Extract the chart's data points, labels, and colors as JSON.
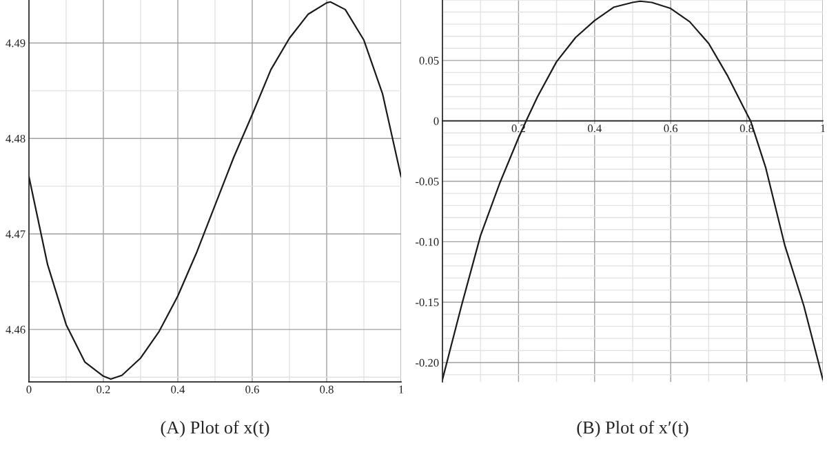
{
  "chart_data": [
    {
      "type": "line",
      "title": "(A) Plot of x(t)",
      "series": [
        {
          "color": "#1a1a1a",
          "x": [
            0,
            0.05,
            0.1,
            0.15,
            0.2,
            0.22,
            0.25,
            0.3,
            0.35,
            0.4,
            0.45,
            0.5,
            0.55,
            0.6,
            0.65,
            0.7,
            0.75,
            0.8,
            0.81,
            0.85,
            0.9,
            0.95,
            1
          ],
          "values": [
            4.476,
            4.4668,
            4.4605,
            4.4566,
            4.4551,
            4.4548,
            4.4552,
            4.457,
            4.4598,
            4.4635,
            4.468,
            4.473,
            4.478,
            4.4825,
            4.4872,
            4.4905,
            4.493,
            4.4942,
            4.4943,
            4.4935,
            4.4903,
            4.4847,
            4.476
          ]
        }
      ],
      "xlim": [
        0,
        1
      ],
      "ylim": [
        4.4545,
        4.4945
      ],
      "xticks": [
        0,
        0.2,
        0.4,
        0.6,
        0.8,
        1
      ],
      "yticks": [
        4.46,
        4.47,
        4.48,
        4.49
      ],
      "grid": true,
      "marker": "none",
      "line_style": "solid"
    },
    {
      "type": "line",
      "title": "(B) Plot of x′(t)",
      "series": [
        {
          "color": "#1a1a1a",
          "x": [
            0,
            0.05,
            0.1,
            0.15,
            0.2,
            0.22,
            0.25,
            0.3,
            0.35,
            0.4,
            0.45,
            0.5,
            0.52,
            0.55,
            0.6,
            0.65,
            0.7,
            0.75,
            0.8,
            0.81,
            0.85,
            0.9,
            0.95,
            1
          ],
          "values": [
            -0.214,
            -0.153,
            -0.095,
            -0.052,
            -0.014,
            0,
            0.02,
            0.049,
            0.069,
            0.083,
            0.094,
            0.098,
            0.099,
            0.098,
            0.093,
            0.082,
            0.064,
            0.037,
            0.006,
            0,
            -0.039,
            -0.103,
            -0.153,
            -0.214
          ]
        }
      ],
      "xlim": [
        0,
        1
      ],
      "ylim": [
        -0.216,
        0.1
      ],
      "xticks": [
        {
          "value": 0,
          "label": null
        },
        0.2,
        0.4,
        0.6,
        0.8,
        1
      ],
      "yticks": [
        {
          "value": -0.2,
          "label": "-0.20"
        },
        -0.15,
        {
          "value": -0.1,
          "label": "-0.10"
        },
        -0.05,
        0,
        0.05
      ],
      "grid": true,
      "marker": "none",
      "line_style": "solid"
    }
  ]
}
